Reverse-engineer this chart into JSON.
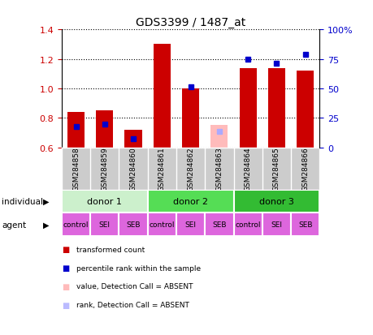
{
  "title": "GDS3399 / 1487_at",
  "samples": [
    "GSM284858",
    "GSM284859",
    "GSM284860",
    "GSM284861",
    "GSM284862",
    "GSM284863",
    "GSM284864",
    "GSM284865",
    "GSM284866"
  ],
  "red_values": [
    0.84,
    0.85,
    0.72,
    1.3,
    1.0,
    null,
    1.14,
    1.14,
    1.12
  ],
  "pink_values": [
    null,
    null,
    null,
    null,
    null,
    0.75,
    null,
    null,
    null
  ],
  "blue_squares": [
    0.74,
    0.76,
    0.66,
    null,
    1.01,
    null,
    1.2,
    1.17,
    1.23
  ],
  "light_blue_squares": [
    null,
    null,
    null,
    null,
    null,
    0.71,
    null,
    null,
    null
  ],
  "ylim": [
    0.6,
    1.4
  ],
  "yticks_left": [
    0.6,
    0.8,
    1.0,
    1.2,
    1.4
  ],
  "yticks_right": [
    0,
    25,
    50,
    75,
    100
  ],
  "left_tick_color": "#cc0000",
  "right_tick_color": "#0000cc",
  "donors": [
    {
      "label": "donor 1",
      "start": 0,
      "end": 3
    },
    {
      "label": "donor 2",
      "start": 3,
      "end": 6
    },
    {
      "label": "donor 3",
      "start": 6,
      "end": 9
    }
  ],
  "donor_colors": [
    "#ccf0cc",
    "#55dd55",
    "#33bb33"
  ],
  "agents": [
    "control",
    "SEI",
    "SEB",
    "control",
    "SEI",
    "SEB",
    "control",
    "SEI",
    "SEB"
  ],
  "agent_color": "#dd66dd",
  "bar_width": 0.6,
  "baseline": 0.6,
  "sample_bg_color": "#cccccc",
  "legend_items": [
    {
      "label": "transformed count",
      "color": "#cc0000"
    },
    {
      "label": "percentile rank within the sample",
      "color": "#0000cc"
    },
    {
      "label": "value, Detection Call = ABSENT",
      "color": "#ffbbbb"
    },
    {
      "label": "rank, Detection Call = ABSENT",
      "color": "#bbbbff"
    }
  ]
}
